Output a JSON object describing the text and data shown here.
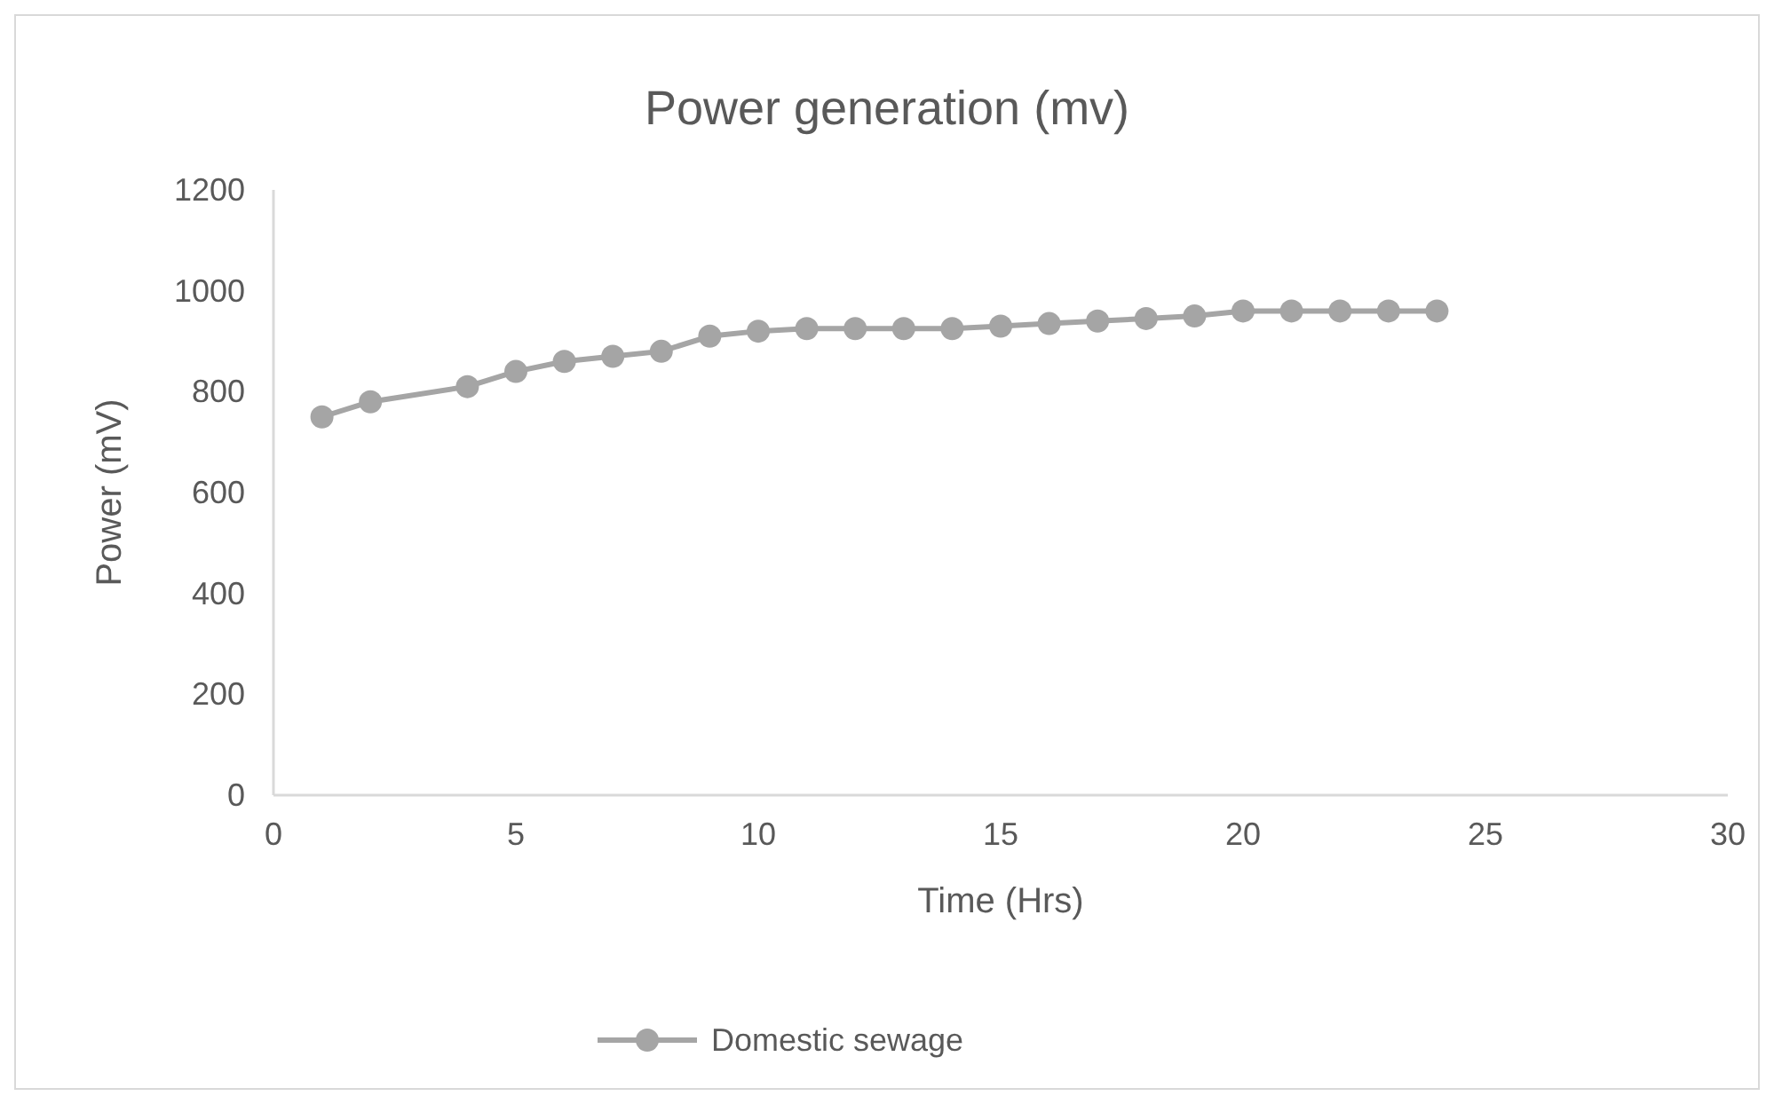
{
  "chart_data": {
    "type": "line",
    "title": "Power generation (mv)",
    "xlabel": "Time (Hrs)",
    "ylabel": "Power (mV)",
    "x": [
      1,
      2,
      4,
      5,
      6,
      7,
      8,
      9,
      10,
      11,
      12,
      13,
      14,
      15,
      16,
      17,
      18,
      19,
      20,
      21,
      22,
      23,
      24
    ],
    "series": [
      {
        "name": "Domestic sewage",
        "color": "#a5a5a5",
        "values": [
          750,
          780,
          810,
          840,
          860,
          870,
          880,
          910,
          920,
          925,
          925,
          925,
          925,
          930,
          935,
          940,
          945,
          950,
          960,
          960,
          960,
          960,
          960
        ]
      }
    ],
    "xlim": [
      0,
      30
    ],
    "xticks": [
      0,
      5,
      10,
      15,
      20,
      25,
      30
    ],
    "ylim": [
      0,
      1200
    ],
    "yticks": [
      0,
      200,
      400,
      600,
      800,
      1000,
      1200
    ],
    "grid": false,
    "legend": "bottom",
    "marker": "circle",
    "line_style": "solid"
  }
}
